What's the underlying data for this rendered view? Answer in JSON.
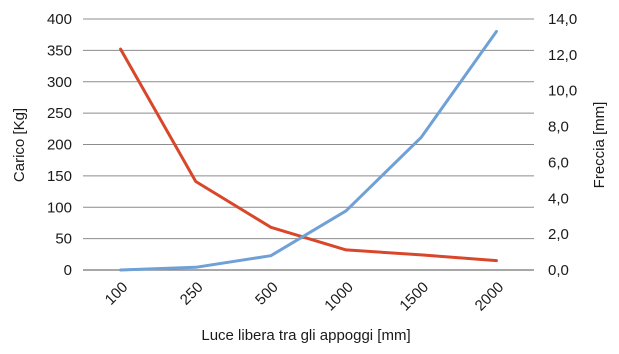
{
  "chart_data": {
    "type": "line",
    "title": "",
    "xlabel": "Luce libera tra gli appoggi [mm]",
    "ylabel": "Carico [Kg]",
    "y2label": "Freccia [mm]",
    "categories": [
      "100",
      "250",
      "500",
      "1000",
      "1500",
      "2000"
    ],
    "ylim": [
      0,
      400
    ],
    "y2lim": [
      0,
      14
    ],
    "yticks": [
      "0",
      "50",
      "100",
      "150",
      "200",
      "250",
      "300",
      "350",
      "400"
    ],
    "y2ticks": [
      "0,0",
      "2,0",
      "4,0",
      "6,0",
      "8,0",
      "10,0",
      "12,0",
      "14,0"
    ],
    "grid": true,
    "legend": "none",
    "series": [
      {
        "axis": "left",
        "color": "#d9472b",
        "values": [
          352,
          141,
          68,
          32,
          24,
          15
        ]
      },
      {
        "axis": "right",
        "color": "#6fa0d6",
        "values": [
          0.0,
          0.15,
          0.8,
          3.3,
          7.4,
          13.3
        ]
      }
    ]
  }
}
